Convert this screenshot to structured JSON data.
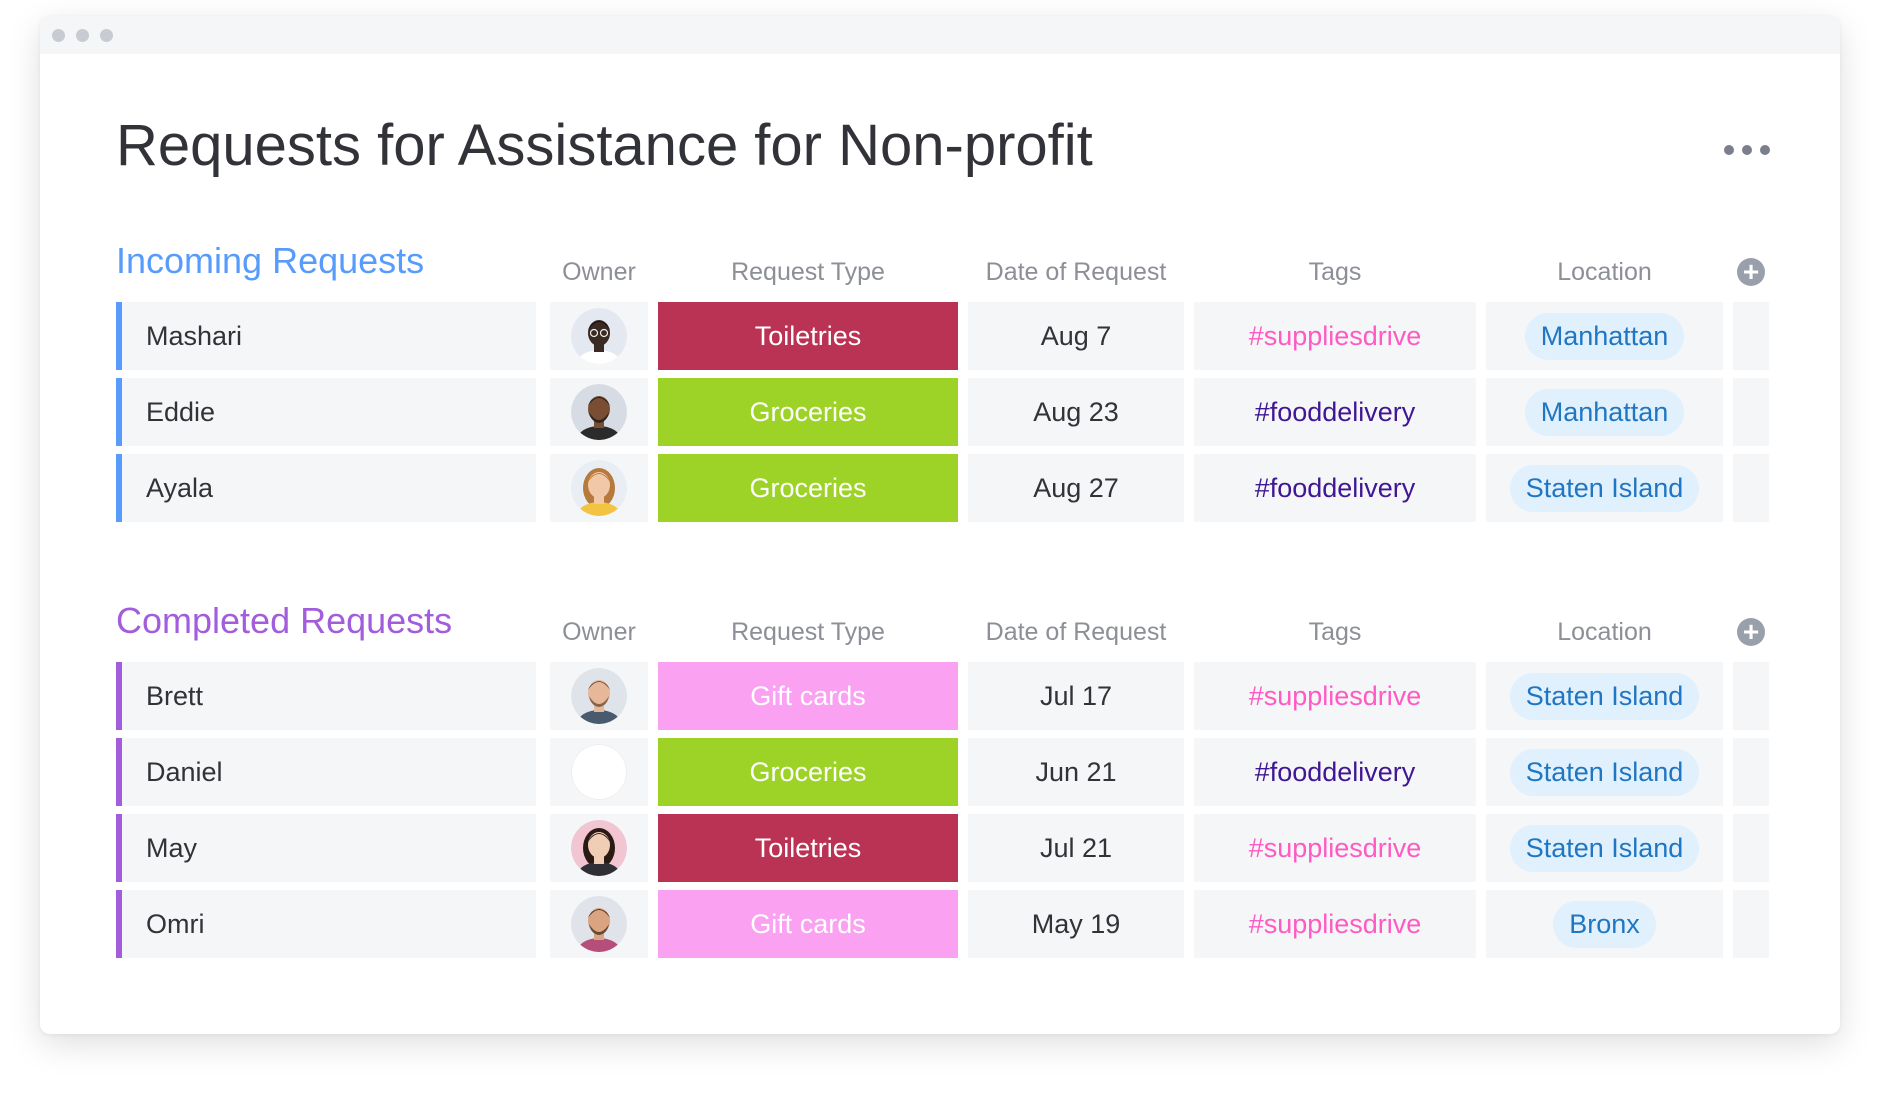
{
  "board": {
    "title": "Requests for Assistance for Non-profit"
  },
  "groups": [
    {
      "title": "Incoming Requests",
      "color": "#579bfc",
      "columns": [
        "Owner",
        "Request Type",
        "Date of Request",
        "Tags",
        "Location"
      ],
      "rows": [
        {
          "name": "Mashari",
          "owner_avatar": "avatar-mashari",
          "type": "Toiletries",
          "type_color": "#bb3354",
          "date": "Aug 7",
          "tag": "#suppliesdrive",
          "tag_color": "#ff5ac4",
          "location": "Manhattan"
        },
        {
          "name": "Eddie",
          "owner_avatar": "avatar-eddie",
          "type": "Groceries",
          "type_color": "#9cd326",
          "date": "Aug 23",
          "tag": "#fooddelivery",
          "tag_color": "#401694",
          "location": "Manhattan"
        },
        {
          "name": "Ayala",
          "owner_avatar": "avatar-ayala",
          "type": "Groceries",
          "type_color": "#9cd326",
          "date": "Aug 27",
          "tag": "#fooddelivery",
          "tag_color": "#401694",
          "location": "Staten Island"
        }
      ]
    },
    {
      "title": "Completed Requests",
      "color": "#a25ddc",
      "columns": [
        "Owner",
        "Request Type",
        "Date of Request",
        "Tags",
        "Location"
      ],
      "rows": [
        {
          "name": "Brett",
          "owner_avatar": "avatar-brett",
          "type": "Gift cards",
          "type_color": "#faa1f1",
          "date": "Jul 17",
          "tag": "#suppliesdrive",
          "tag_color": "#ff5ac4",
          "location": "Staten Island"
        },
        {
          "name": "Daniel",
          "owner_avatar": "avatar-daniel",
          "type": "Groceries",
          "type_color": "#9cd326",
          "date": "Jun 21",
          "tag": "#fooddelivery",
          "tag_color": "#401694",
          "location": "Staten Island"
        },
        {
          "name": "May",
          "owner_avatar": "avatar-may",
          "type": "Toiletries",
          "type_color": "#bb3354",
          "date": "Jul 21",
          "tag": "#suppliesdrive",
          "tag_color": "#ff5ac4",
          "location": "Staten Island"
        },
        {
          "name": "Omri",
          "owner_avatar": "avatar-omri",
          "type": "Gift cards",
          "type_color": "#faa1f1",
          "date": "May 19",
          "tag": "#suppliesdrive",
          "tag_color": "#ff5ac4",
          "location": "Bronx"
        }
      ]
    }
  ],
  "colors": {
    "cell_bg": "#f5f6f8",
    "text": "#323338",
    "header_text": "#8d8f97",
    "location_chip_bg": "#e1f0fd",
    "location_chip_text": "#1f76c2"
  },
  "icons": [
    "window-dots-icon",
    "more-options-icon",
    "add-column-icon"
  ]
}
